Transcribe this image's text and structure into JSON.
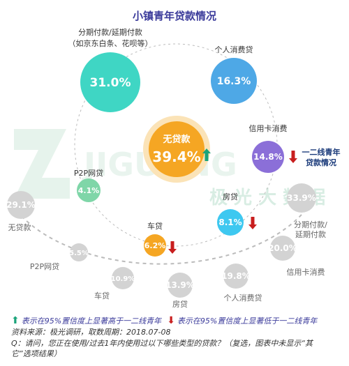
{
  "chart_data": {
    "type": "bubble",
    "title": "小镇青年贷款情况",
    "center": {
      "label": "无贷款",
      "value": "39.4%",
      "trend": "up"
    },
    "series": [
      {
        "name": "小镇青年",
        "values": [
          {
            "label_lines": [
              "分期付款/延期付款",
              "（如京东白条、花呗等）"
            ],
            "value": "31.0%",
            "trend": ""
          },
          {
            "label_lines": [
              "个人消费贷"
            ],
            "value": "16.3%",
            "trend": ""
          },
          {
            "label_lines": [
              "信用卡消费"
            ],
            "value": "14.8%",
            "trend": "down"
          },
          {
            "label_lines": [
              "房贷"
            ],
            "value": "8.1%",
            "trend": "down"
          },
          {
            "label_lines": [
              "车贷"
            ],
            "value": "6.2%",
            "trend": "down"
          },
          {
            "label_lines": [
              "P2P网贷"
            ],
            "value": "4.1%",
            "trend": ""
          }
        ]
      },
      {
        "name": "一二线青年贷款情况",
        "values": [
          {
            "label": "无贷款",
            "value": "29.1%"
          },
          {
            "label": "P2P网贷",
            "value": "5.5%"
          },
          {
            "label": "车贷",
            "value": "10.9%"
          },
          {
            "label": "房贷",
            "value": "13.9%"
          },
          {
            "label": "个人消费贷",
            "value": "19.8%"
          },
          {
            "label": "信用卡消费",
            "value": "20.0%"
          },
          {
            "label_lines": [
              "分期付款/",
              "延期付款"
            ],
            "value": "33.9%"
          }
        ]
      }
    ],
    "outer_title_lines": [
      "一二线青年",
      "贷款情况"
    ]
  },
  "watermark": {
    "brand": "JIGUANG",
    "text": "极 光 大 数 据"
  },
  "colors": {
    "title": "#3a3a9a",
    "center": "#f5a623",
    "up": "#1aa37a",
    "down": "#c81e1e",
    "inner_fills": [
      "#3fd6c4",
      "#4ea8e6",
      "#8b6fd8",
      "#3ec8f0",
      "#f5a623",
      "#7fd6a8"
    ],
    "outer_fill": "#d3d3d3"
  },
  "legend": {
    "up_text": "表示在95%置信度上显著高于一二线青年",
    "down_text": "表示在95%置信度上显著低于一二线青年"
  },
  "source": "资料来源：极光调研，取数周期：2018.07-08",
  "question_lines": [
    "Q：请问，您正在使用/过去1年内使用过以下哪些类型的贷款？（复选，图表中未显示“其",
    "它”选项结果）"
  ]
}
